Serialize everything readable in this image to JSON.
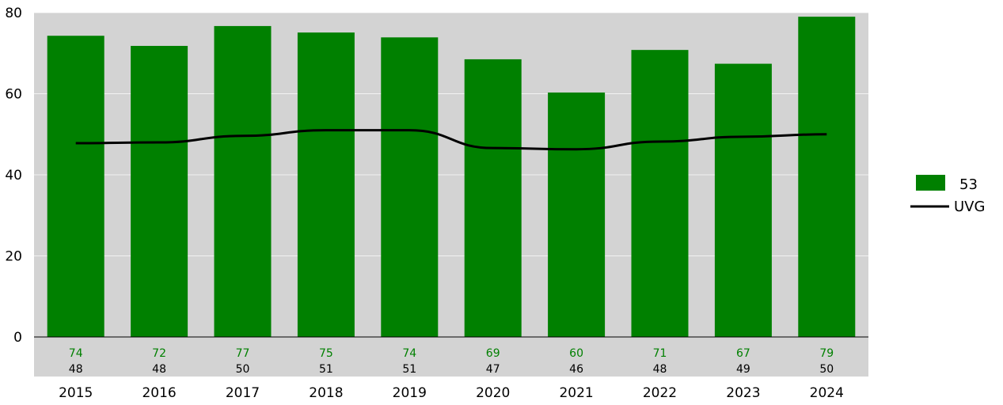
{
  "chart_data": {
    "type": "bar",
    "categories": [
      "2015",
      "2016",
      "2017",
      "2018",
      "2019",
      "2020",
      "2021",
      "2022",
      "2023",
      "2024"
    ],
    "series": [
      {
        "name": "53",
        "kind": "bar",
        "color": "#008000",
        "values": [
          74.3,
          71.8,
          76.7,
          75.1,
          73.9,
          68.5,
          60.3,
          70.8,
          67.4,
          79.0
        ],
        "labels": [
          "74",
          "72",
          "77",
          "75",
          "74",
          "69",
          "60",
          "71",
          "67",
          "79"
        ]
      },
      {
        "name": "UVG",
        "kind": "line",
        "color": "#000000",
        "values": [
          47.8,
          48.0,
          49.6,
          51.0,
          51.0,
          46.6,
          46.3,
          48.2,
          49.4,
          50.0
        ],
        "labels": [
          "48",
          "48",
          "50",
          "51",
          "51",
          "47",
          "46",
          "48",
          "49",
          "50"
        ]
      }
    ],
    "yticks": [
      "0",
      "20",
      "40",
      "60",
      "80"
    ],
    "ylim": [
      0,
      80
    ],
    "grid": true,
    "plot_background": "#d3d3d3",
    "legend_position": "right"
  }
}
